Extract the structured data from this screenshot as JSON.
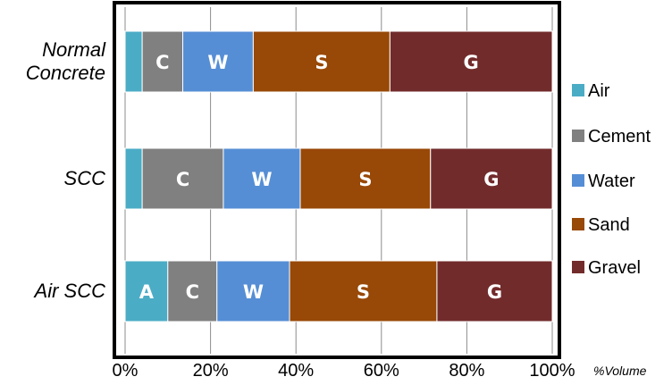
{
  "chart_data": {
    "type": "bar",
    "orientation": "horizontal",
    "stacked": true,
    "categories": [
      "Normal Concrete",
      "SCC",
      "Air SCC"
    ],
    "category_label_lines": [
      [
        "Normal",
        "Concrete"
      ],
      [
        "SCC"
      ],
      [
        "Air SCC"
      ]
    ],
    "series": [
      {
        "name": "Air",
        "color": "#4BACC6",
        "values": [
          4,
          4,
          10
        ],
        "segment_labels": [
          "",
          "",
          "A"
        ]
      },
      {
        "name": "Cement",
        "color": "#808080",
        "values": [
          9.5,
          19,
          11.5
        ],
        "segment_labels": [
          "C",
          "C",
          "C"
        ]
      },
      {
        "name": "Water",
        "color": "#558ED5",
        "values": [
          16.5,
          18,
          17
        ],
        "segment_labels": [
          "W",
          "W",
          "W"
        ]
      },
      {
        "name": "Sand",
        "color": "#984807",
        "values": [
          32,
          30.5,
          34.5
        ],
        "segment_labels": [
          "S",
          "S",
          "S"
        ]
      },
      {
        "name": "Gravel",
        "color": "#722B2B",
        "values": [
          38,
          28.5,
          27
        ],
        "segment_labels": [
          "G",
          "G",
          "G"
        ]
      }
    ],
    "xlim": [
      0,
      100
    ],
    "xticks": [
      "0%",
      "20%",
      "40%",
      "60%",
      "80%",
      "100%"
    ],
    "xlabel": "%Volume",
    "grid": true,
    "legend_position": "right"
  }
}
